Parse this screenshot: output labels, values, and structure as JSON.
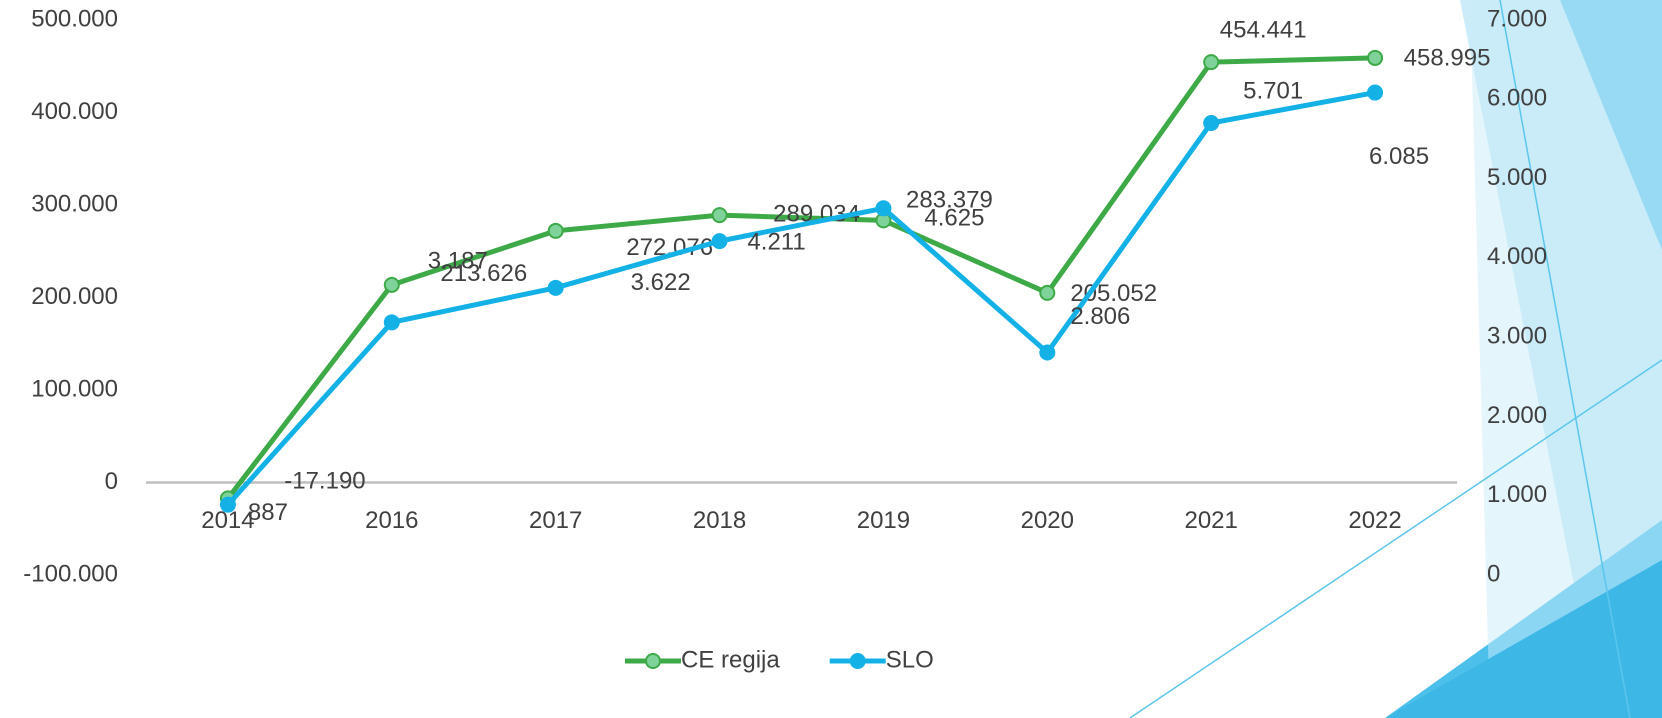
{
  "chart_data": {
    "type": "line",
    "categories": [
      "2014",
      "2016",
      "2017",
      "2018",
      "2019",
      "2020",
      "2021",
      "2022"
    ],
    "series": [
      {
        "name": "CE regija",
        "color": "#3daa47",
        "marker_color": "#7fd39a",
        "axis": "y",
        "values": [
          -17190,
          213626,
          272076,
          289034,
          283379,
          205052,
          454441,
          458995
        ],
        "value_labels": [
          "-17.190",
          "213.626",
          "272.076",
          "289.034",
          "283.379",
          "205.052",
          "454.441",
          "458.995"
        ]
      },
      {
        "name": "SLO",
        "color": "#14b1e7",
        "marker_color": "#14b1e7",
        "axis": "y2",
        "values": [
          887,
          3187,
          3622,
          4211,
          4625,
          2806,
          5701,
          6085
        ],
        "value_labels": [
          "887",
          "3.187",
          "3.622",
          "4.211",
          "4.625",
          "2.806",
          "5.701",
          "6.085"
        ]
      }
    ],
    "ylim": [
      -100000,
      500000
    ],
    "yticks": [
      {
        "value": -100000,
        "label": "-100.000"
      },
      0,
      {
        "value": 100000,
        "label": "100.000"
      },
      {
        "value": 200000,
        "label": "200.000"
      },
      {
        "value": 300000,
        "label": "300.000"
      },
      {
        "value": 400000,
        "label": "400.000"
      },
      {
        "value": 500000,
        "label": "500.000"
      }
    ],
    "y2lim": [
      0,
      7000
    ],
    "y2ticks": [
      0,
      {
        "value": 1000,
        "label": "1.000"
      },
      {
        "value": 2000,
        "label": "2.000"
      },
      {
        "value": 3000,
        "label": "3.000"
      },
      {
        "value": 4000,
        "label": "4.000"
      },
      {
        "value": 5000,
        "label": "5.000"
      },
      {
        "value": 6000,
        "label": "6.000"
      },
      {
        "value": 7000,
        "label": "7.000"
      }
    ],
    "grid": false,
    "legend": "bottom"
  }
}
